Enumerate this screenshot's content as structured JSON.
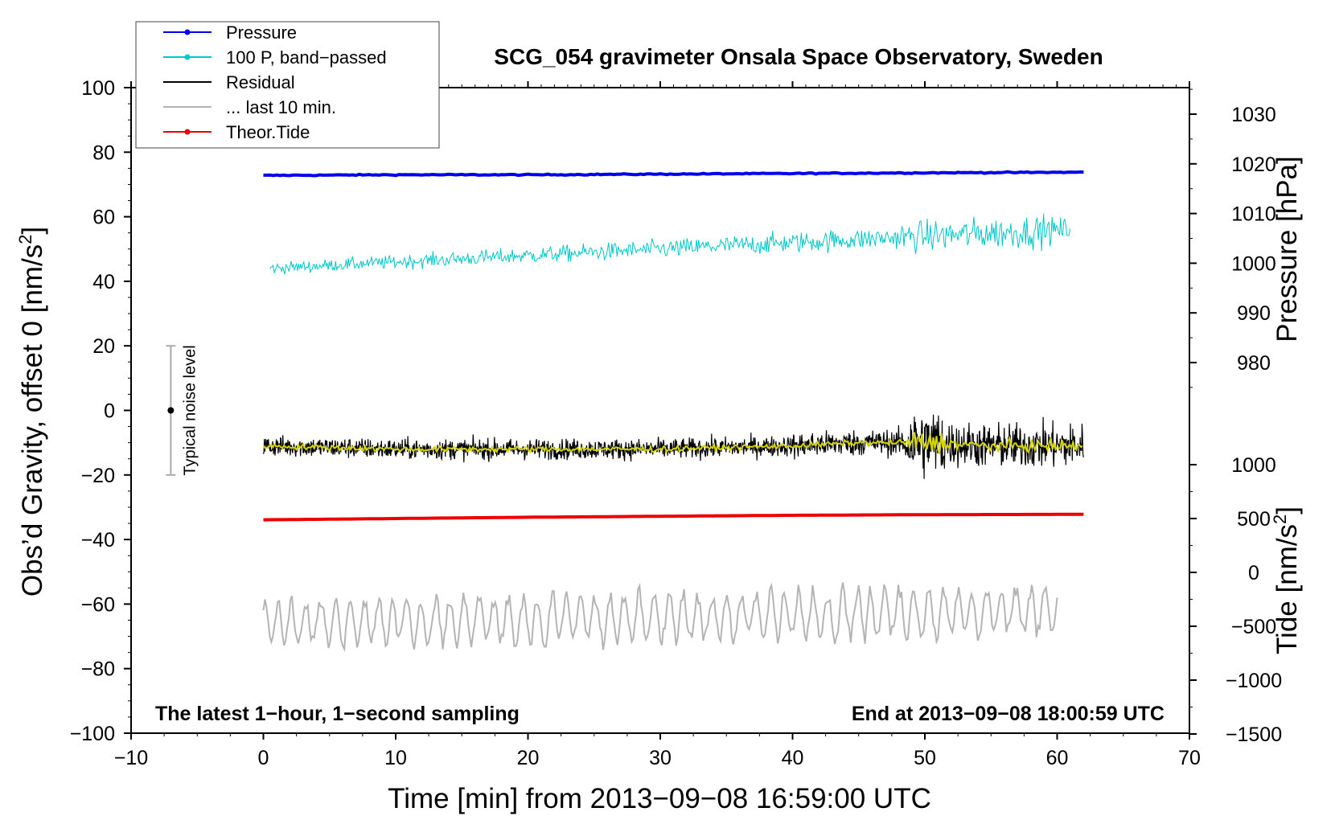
{
  "chart_data": {
    "type": "line",
    "title": "SCG_054 gravimeter Onsala Space Observatory, Sweden",
    "xlabel": "Time [min] from 2013−09−08 16:59:00 UTC",
    "ylabel": "Obs’d Gravity, offset 0 [nm/s",
    "ylabel_sup": "2",
    "ylabel_end": "]",
    "y2label": "Pressure [hPa]",
    "y3label": "Tide [nm/s",
    "y3label_sup": "2",
    "y3label_end": "]",
    "xlim": [
      -10,
      70
    ],
    "ylim": [
      -100,
      100
    ],
    "x_ticks": [
      "−10",
      "0",
      "10",
      "20",
      "30",
      "40",
      "50",
      "60",
      "70"
    ],
    "x_tick_values": [
      -10,
      0,
      10,
      20,
      30,
      40,
      50,
      60,
      70
    ],
    "y_ticks": [
      "100",
      "80",
      "60",
      "40",
      "20",
      "0",
      "−20",
      "−40",
      "−60",
      "−80",
      "−100"
    ],
    "y_tick_values": [
      100,
      80,
      60,
      40,
      20,
      0,
      -20,
      -40,
      -60,
      -80,
      -100
    ],
    "pressure_ticks": [
      "1030",
      "1020",
      "1010",
      "1000",
      "990",
      "980"
    ],
    "pressure_tick_values": [
      1030,
      1020,
      1010,
      1000,
      990,
      980
    ],
    "tide_ticks": [
      "1000",
      "500",
      "0",
      "−500",
      "−1000",
      "−1500"
    ],
    "tide_tick_values": [
      1000,
      500,
      0,
      -500,
      -1000,
      -1500
    ],
    "grid": false,
    "legend_position": "top-left",
    "legend": [
      {
        "label": "Pressure",
        "color": "#0000ee",
        "marker": true
      },
      {
        "label": "100 P, band−passed",
        "color": "#00c8c8",
        "marker": true
      },
      {
        "label": "Residual",
        "color": "#000000",
        "marker": false
      },
      {
        "label": "... last 10 min.",
        "color": "#b4b4b4",
        "marker": false
      },
      {
        "label": "Theor.Tide",
        "color": "#ee0000",
        "marker": true
      }
    ],
    "series": [
      {
        "name": "Pressure",
        "color": "#0000ee",
        "x": [
          0,
          10,
          20,
          30,
          40,
          50,
          62
        ],
        "y": [
          72.8,
          73.0,
          73.0,
          73.2,
          73.4,
          73.6,
          73.8
        ]
      },
      {
        "name": "100 P, band−passed",
        "color": "#00c8c8",
        "x": [
          0.5,
          10,
          20,
          30,
          40,
          50,
          61
        ],
        "y": [
          44,
          46,
          48,
          50,
          52,
          54,
          56
        ]
      },
      {
        "name": "Residual",
        "color": "#000000",
        "x": [
          0,
          10,
          20,
          30,
          40,
          45,
          50,
          55,
          62
        ],
        "y": [
          -11,
          -12,
          -12,
          -12,
          -11,
          -10,
          -10,
          -11,
          -11
        ]
      },
      {
        "name": "Theor.Tide",
        "color": "#ee0000",
        "x": [
          0,
          10,
          20,
          30,
          40,
          50,
          62
        ],
        "y": [
          -33.9,
          -33.5,
          -33.1,
          -32.8,
          -32.5,
          -32.3,
          -32.2
        ]
      },
      {
        "name": "... last 10 min.",
        "color": "#b4b4b4",
        "x": [
          0,
          60
        ],
        "y": [
          -62,
          -58
        ]
      }
    ],
    "noise_label": "Typical noise level",
    "noise_bar": {
      "x": -7,
      "center": 0,
      "low": -20,
      "high": 20
    },
    "annotation_left": "The latest 1−hour, 1−second sampling",
    "annotation_right": "End at 2013−09−08 18:00:59 UTC"
  }
}
